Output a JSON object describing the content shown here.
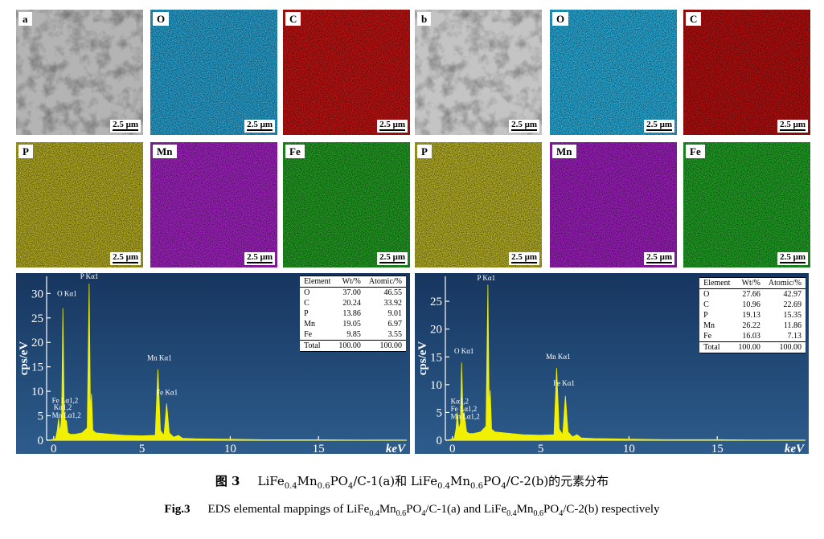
{
  "figure": {
    "tiles": [
      {
        "label": "a",
        "scale_bar": "2.5 μm",
        "color": "#b4b4b4"
      },
      {
        "label": "O",
        "scale_bar": "2.5 μm",
        "color": "#2aa6d6"
      },
      {
        "label": "C",
        "scale_bar": "2.5 μm",
        "color": "#c41414"
      },
      {
        "label": "b",
        "scale_bar": "2.5 μm",
        "color": "#c4c4c4"
      },
      {
        "label": "O",
        "scale_bar": "2.5 μm",
        "color": "#2ab0de"
      },
      {
        "label": "C",
        "scale_bar": "2.5 μm",
        "color": "#b81010"
      },
      {
        "label": "P",
        "scale_bar": "2.5 μm",
        "color": "#b8b024"
      },
      {
        "label": "Mn",
        "scale_bar": "2.5 μm",
        "color": "#a424c4"
      },
      {
        "label": "Fe",
        "scale_bar": "2.5 μm",
        "color": "#24a024"
      },
      {
        "label": "P",
        "scale_bar": "2.5 μm",
        "color": "#bab428"
      },
      {
        "label": "Mn",
        "scale_bar": "2.5 μm",
        "color": "#a020c0"
      },
      {
        "label": "Fe",
        "scale_bar": "2.5 μm",
        "color": "#22a426"
      }
    ],
    "spectra": [
      {
        "type": "area",
        "y_label": "cps/eV",
        "x_label": "keV",
        "color": "#f0f000",
        "xlim": [
          -0.4,
          20
        ],
        "ylim": [
          0,
          33.5
        ],
        "xticks": [
          0,
          5,
          10,
          15
        ],
        "yticks": [
          0,
          5,
          10,
          15,
          20,
          25,
          30
        ],
        "x": [
          -0.3,
          0.1,
          0.2,
          0.28,
          0.36,
          0.45,
          0.52,
          0.6,
          0.66,
          0.72,
          0.8,
          0.95,
          1.2,
          1.6,
          1.9,
          2.01,
          2.08,
          2.14,
          2.22,
          2.4,
          3,
          4,
          5,
          5.75,
          5.9,
          6.05,
          6.25,
          6.4,
          6.55,
          6.8,
          7.06,
          7.3,
          8,
          10,
          12,
          15,
          18,
          20
        ],
        "values": [
          0,
          0.3,
          2,
          4.5,
          1.5,
          5,
          27,
          5,
          4,
          4,
          1.5,
          1.2,
          1.2,
          1.5,
          2.5,
          32,
          6,
          9.5,
          2,
          1.5,
          1.3,
          1,
          0.9,
          1,
          14.5,
          2,
          1,
          7.5,
          1.5,
          0.6,
          1,
          0.4,
          0.3,
          0.2,
          0.1,
          0.1,
          0,
          0
        ],
        "annotations": [
          {
            "text": "O Kα1",
            "x": 0.2,
            "y": 29.5
          },
          {
            "text": "P Kα1",
            "x": 1.5,
            "y": 33
          },
          {
            "text": "Mn Kα1",
            "x": 5.3,
            "y": 16.3
          },
          {
            "text": "Fe Kα1",
            "x": 5.8,
            "y": 9.3
          },
          {
            "text": "Fe Lα1,2",
            "x": -0.1,
            "y": 7.6
          },
          {
            "text": "Kα1,2",
            "x": 0,
            "y": 6.2
          },
          {
            "text": "Mn Lα1,2",
            "x": -0.1,
            "y": 4.6
          }
        ],
        "table": {
          "header": [
            "Element",
            "Wt/%",
            "Atomic/%"
          ],
          "rows": [
            [
              "O",
              "37.00",
              "46.55"
            ],
            [
              "C",
              "20.24",
              "33.92"
            ],
            [
              "P",
              "13.86",
              "9.01"
            ],
            [
              "Mn",
              "19.05",
              "6.97"
            ],
            [
              "Fe",
              "9.85",
              "3.55"
            ],
            [
              "Total",
              "100.00",
              "100.00"
            ]
          ]
        }
      },
      {
        "type": "area",
        "y_label": "cps/eV",
        "x_label": "keV",
        "color": "#f0f000",
        "xlim": [
          -0.4,
          20
        ],
        "ylim": [
          0,
          29.5
        ],
        "xticks": [
          0,
          5,
          10,
          15
        ],
        "yticks": [
          0,
          5,
          10,
          15,
          20,
          25
        ],
        "x": [
          -0.3,
          0.1,
          0.2,
          0.28,
          0.36,
          0.45,
          0.52,
          0.6,
          0.66,
          0.72,
          0.8,
          0.95,
          1.2,
          1.6,
          1.9,
          2.01,
          2.08,
          2.14,
          2.22,
          2.4,
          3,
          4,
          5,
          5.75,
          5.9,
          6.05,
          6.25,
          6.4,
          6.55,
          6.8,
          7.06,
          7.3,
          8,
          10,
          12,
          15,
          18,
          20
        ],
        "values": [
          0,
          0.3,
          2,
          5,
          2,
          3,
          14,
          4.5,
          5,
          3.5,
          1.5,
          1.2,
          1.2,
          1.5,
          2.5,
          28,
          6,
          9,
          2,
          1.5,
          1.3,
          1,
          0.9,
          1,
          13,
          2,
          1,
          8,
          1.5,
          0.6,
          1,
          0.4,
          0.3,
          0.2,
          0.1,
          0.1,
          0,
          0
        ],
        "annotations": [
          {
            "text": "P Kα1",
            "x": 1.4,
            "y": 28.8
          },
          {
            "text": "O Kα1",
            "x": 0.1,
            "y": 15.6
          },
          {
            "text": "Mn Kα1",
            "x": 5.3,
            "y": 14.6
          },
          {
            "text": "Fe Kα1",
            "x": 5.7,
            "y": 9.8
          },
          {
            "text": "Kα1,2",
            "x": -0.1,
            "y": 6.6
          },
          {
            "text": "Fe Lα1,2",
            "x": -0.1,
            "y": 5.2
          },
          {
            "text": "Mn Lα1,2",
            "x": -0.1,
            "y": 3.8
          }
        ],
        "table": {
          "header": [
            "Element",
            "Wt/%",
            "Atomic/%"
          ],
          "rows": [
            [
              "O",
              "27.66",
              "42.97"
            ],
            [
              "C",
              "10.96",
              "22.69"
            ],
            [
              "P",
              "19.13",
              "15.35"
            ],
            [
              "Mn",
              "26.22",
              "11.86"
            ],
            [
              "Fe",
              "16.03",
              "7.13"
            ],
            [
              "Total",
              "100.00",
              "100.00"
            ]
          ]
        }
      }
    ],
    "caption_cn": {
      "label": "图 3",
      "runs": [
        "LiFe",
        "0.4",
        "Mn",
        "0.6",
        "PO",
        "4",
        "/C-1(a)和 LiFe",
        "0.4",
        "Mn",
        "0.6",
        "PO",
        "4",
        "/C-2(b)的元素分布"
      ]
    },
    "caption_en": {
      "label": "Fig.3",
      "runs": [
        "EDS elemental mappings of LiFe",
        "0.4",
        "Mn",
        "0.6",
        "PO",
        "4",
        "/C-1(a) and LiFe",
        "0.4",
        "Mn",
        "0.6",
        "PO",
        "4",
        "/C-2(b) respectively"
      ]
    }
  }
}
